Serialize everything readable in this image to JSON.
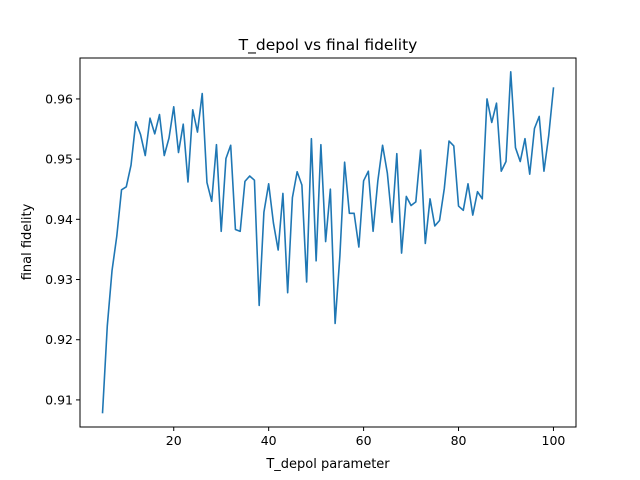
{
  "chart_data": {
    "type": "line",
    "title": "T_depol vs final fidelity",
    "xlabel": "T_depol parameter",
    "ylabel": "final fidelity",
    "xlim": [
      0.25,
      104.75
    ],
    "ylim": [
      0.9055,
      0.9668
    ],
    "xticks": [
      20,
      40,
      60,
      80,
      100
    ],
    "yticks": [
      0.91,
      0.92,
      0.93,
      0.94,
      0.95,
      0.96
    ],
    "xtick_labels": [
      "20",
      "40",
      "60",
      "80",
      "100"
    ],
    "ytick_labels": [
      "0.91",
      "0.92",
      "0.93",
      "0.94",
      "0.95",
      "0.96"
    ],
    "grid": false,
    "line_color": "#1f77b4",
    "series": [
      {
        "x": [
          5,
          6,
          7,
          8,
          9,
          10,
          11,
          12,
          13,
          14,
          15,
          16,
          17,
          18,
          19,
          20,
          21,
          22,
          23,
          24,
          25,
          26,
          27,
          28,
          29,
          30,
          31,
          32,
          33,
          34,
          35,
          36,
          37,
          38,
          39,
          40,
          41,
          42,
          43,
          44,
          45,
          46,
          47,
          48,
          49,
          50,
          51,
          52,
          53,
          54,
          55,
          56,
          57,
          58,
          59,
          60,
          61,
          62,
          63,
          64,
          65,
          66,
          67,
          68,
          69,
          70,
          71,
          72,
          73,
          74,
          75,
          76,
          77,
          78,
          79,
          80,
          81,
          82,
          83,
          84,
          85,
          86,
          87,
          88,
          89,
          90,
          91,
          92,
          93,
          94,
          95,
          96,
          97,
          98,
          99,
          100
        ],
        "y": [
          0.9079,
          0.9223,
          0.9315,
          0.9372,
          0.9449,
          0.9454,
          0.949,
          0.9562,
          0.9541,
          0.9506,
          0.9568,
          0.9542,
          0.9574,
          0.9506,
          0.9535,
          0.9587,
          0.9511,
          0.9558,
          0.9462,
          0.9582,
          0.9545,
          0.9609,
          0.9461,
          0.943,
          0.9524,
          0.938,
          0.9501,
          0.9523,
          0.9383,
          0.938,
          0.9463,
          0.9472,
          0.9465,
          0.9257,
          0.9412,
          0.9459,
          0.9394,
          0.9349,
          0.9443,
          0.9278,
          0.9436,
          0.9479,
          0.9457,
          0.9296,
          0.9534,
          0.9331,
          0.9524,
          0.9363,
          0.945,
          0.9227,
          0.9339,
          0.9495,
          0.941,
          0.941,
          0.9354,
          0.9464,
          0.948,
          0.938,
          0.9464,
          0.9523,
          0.9477,
          0.9395,
          0.9509,
          0.9344,
          0.9438,
          0.9423,
          0.9429,
          0.9515,
          0.936,
          0.9434,
          0.9389,
          0.9398,
          0.9451,
          0.953,
          0.9522,
          0.9422,
          0.9415,
          0.9459,
          0.9407,
          0.9446,
          0.9434,
          0.96,
          0.9561,
          0.9593,
          0.948,
          0.9496,
          0.9645,
          0.9519,
          0.9496,
          0.9534,
          0.9475,
          0.9551,
          0.9571,
          0.948,
          0.9539,
          0.9618
        ]
      }
    ]
  }
}
